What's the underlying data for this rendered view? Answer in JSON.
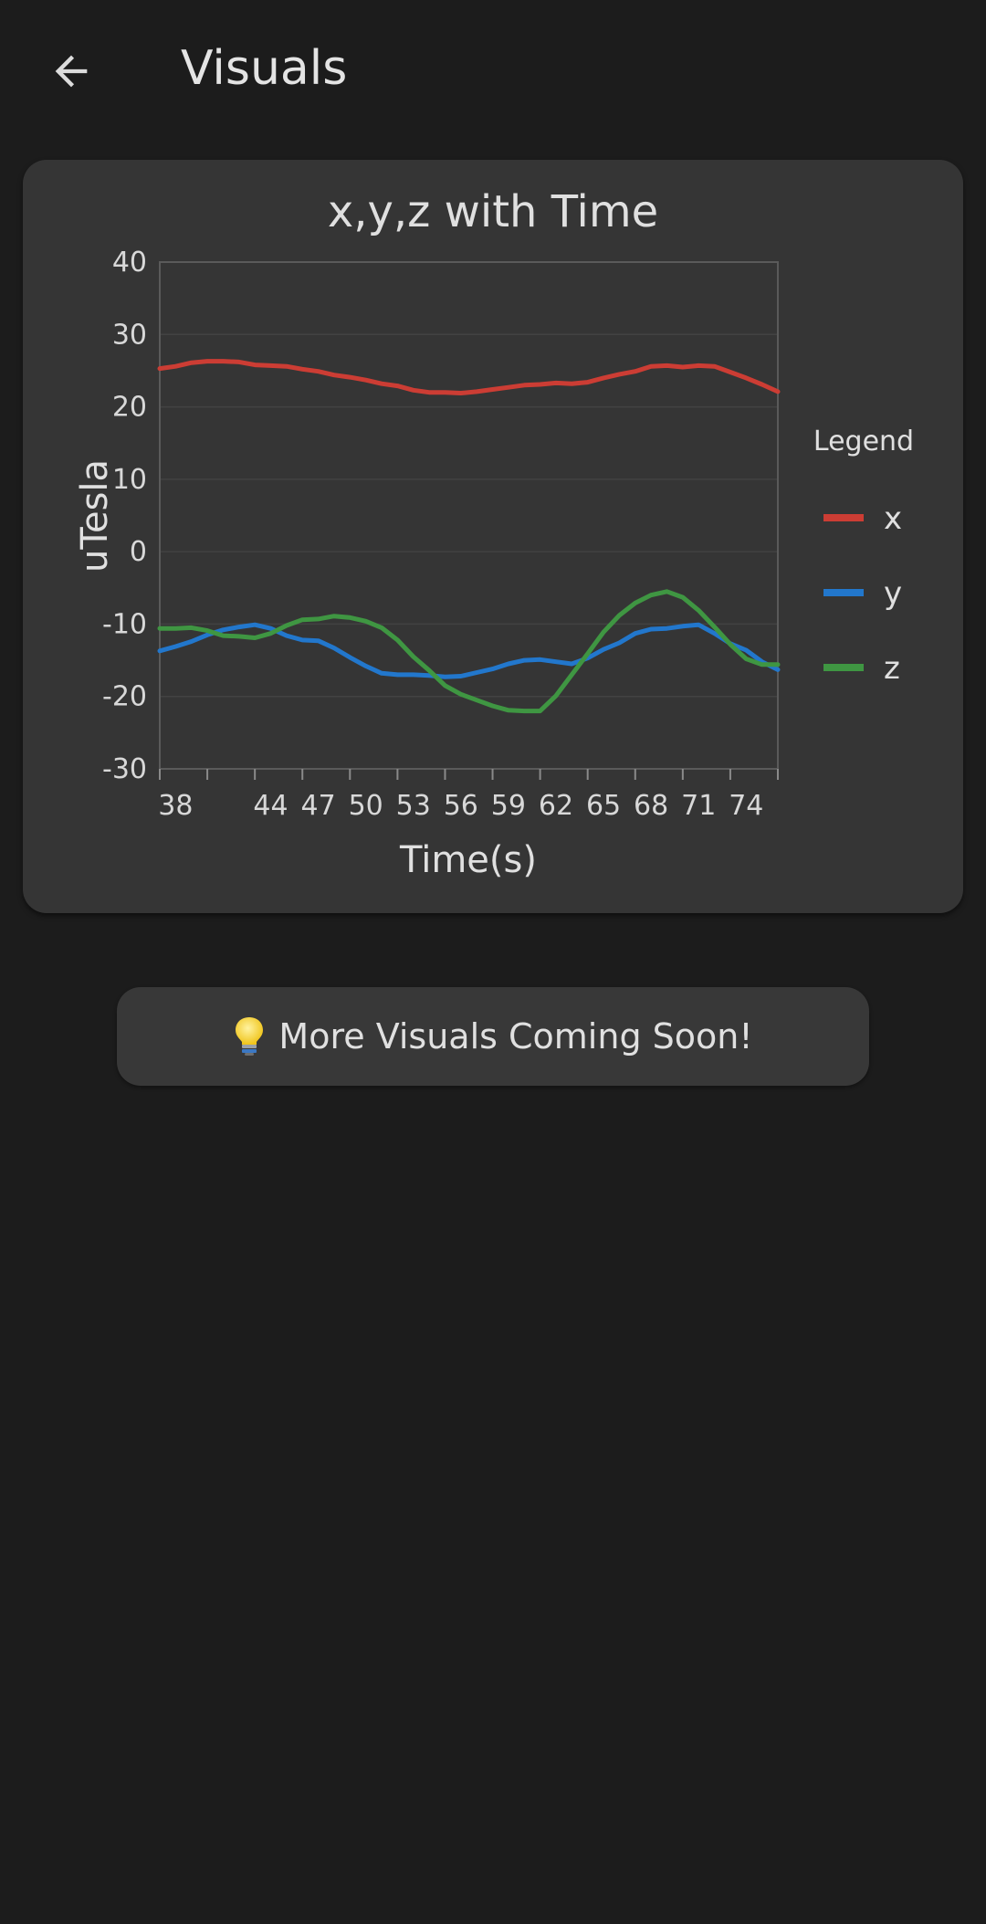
{
  "header": {
    "title": "Visuals",
    "back_icon": "arrow-left-icon"
  },
  "chart_data": {
    "type": "line",
    "title": "x,y,z with Time",
    "xlabel": "Time(s)",
    "ylabel": "uTesla",
    "xlim": [
      37,
      76
    ],
    "ylim": [
      -30,
      40
    ],
    "x_tick_labels": [
      38,
      44,
      47,
      50,
      53,
      56,
      59,
      62,
      65,
      68,
      71,
      74
    ],
    "x_tick_marks": [
      37,
      40,
      43,
      46,
      49,
      52,
      55,
      58,
      61,
      64,
      67,
      70,
      73,
      76
    ],
    "y_ticks": [
      40,
      30,
      20,
      10,
      0,
      -10,
      -20,
      -30
    ],
    "grid": true,
    "legend": {
      "title": "Legend",
      "position": "right"
    },
    "x": [
      37,
      38,
      39,
      40,
      41,
      42,
      43,
      44,
      45,
      46,
      47,
      48,
      49,
      50,
      51,
      52,
      53,
      54,
      55,
      56,
      57,
      58,
      59,
      60,
      61,
      62,
      63,
      64,
      65,
      66,
      67,
      68,
      69,
      70,
      71,
      72,
      73,
      74,
      75,
      76
    ],
    "series": [
      {
        "name": "x",
        "color": "#cc3d34",
        "values": [
          25.3,
          25.6,
          26.1,
          26.3,
          26.3,
          26.2,
          25.8,
          25.7,
          25.6,
          25.2,
          24.9,
          24.4,
          24.1,
          23.7,
          23.2,
          22.9,
          22.3,
          22.0,
          22.0,
          21.9,
          22.1,
          22.4,
          22.7,
          23.0,
          23.1,
          23.3,
          23.2,
          23.4,
          24.0,
          24.5,
          24.9,
          25.6,
          25.7,
          25.5,
          25.7,
          25.6,
          24.8,
          24.0,
          23.1,
          22.1
        ]
      },
      {
        "name": "y",
        "color": "#2277cc",
        "values": [
          -13.7,
          -13.1,
          -12.4,
          -11.5,
          -10.8,
          -10.4,
          -10.1,
          -10.6,
          -11.6,
          -12.2,
          -12.3,
          -13.3,
          -14.6,
          -15.8,
          -16.8,
          -17.0,
          -17.0,
          -17.1,
          -17.3,
          -17.2,
          -16.7,
          -16.2,
          -15.5,
          -15.0,
          -14.9,
          -15.2,
          -15.5,
          -14.7,
          -13.5,
          -12.6,
          -11.3,
          -10.7,
          -10.6,
          -10.3,
          -10.1,
          -11.3,
          -12.7,
          -13.6,
          -15.2,
          -16.3
        ]
      },
      {
        "name": "z",
        "color": "#3f9642",
        "values": [
          -10.6,
          -10.6,
          -10.5,
          -10.9,
          -11.6,
          -11.7,
          -11.9,
          -11.3,
          -10.2,
          -9.4,
          -9.3,
          -8.9,
          -9.1,
          -9.6,
          -10.5,
          -12.2,
          -14.5,
          -16.4,
          -18.5,
          -19.7,
          -20.5,
          -21.3,
          -21.9,
          -22.0,
          -22.0,
          -19.9,
          -17.0,
          -14.1,
          -11.1,
          -8.8,
          -7.1,
          -6.0,
          -5.5,
          -6.3,
          -8.1,
          -10.4,
          -12.8,
          -14.8,
          -15.6,
          -15.6
        ]
      }
    ]
  },
  "banner": {
    "icon": "lightbulb-icon",
    "text": "More Visuals Coming Soon!"
  }
}
